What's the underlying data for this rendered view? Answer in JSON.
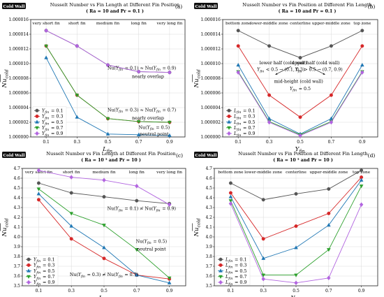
{
  "chart_data": [
    {
      "type": "line",
      "panel_label": "(a)",
      "badge": "Cold Wall",
      "title": "Nusselt Number vs Fin Length at Different Fin Position",
      "subtitle": "( Ra = 10  and  Pr = 0.1 )",
      "xlabel": "L_fin",
      "ylabel": "Nu_cold",
      "x": [
        0.1,
        0.3,
        0.5,
        0.7,
        0.9
      ],
      "xticks": [
        "0.1",
        "0.3",
        "0.5",
        "0.7",
        "0.9"
      ],
      "top_labels": [
        "very short fin",
        "short fin",
        "medium fin",
        "long fin",
        "very long fin"
      ],
      "ylim": [
        1.0,
        1.000016
      ],
      "yticks": [
        1.0,
        1.000002,
        1.000004,
        1.000006,
        1.000008,
        1.00001,
        1.000012,
        1.000014,
        1.000016
      ],
      "ytick_labels": [
        "1.000000",
        "1.000002",
        "1.000004",
        "1.000006",
        "1.000008",
        "1.000010",
        "1.000012",
        "1.000014",
        "1.000016"
      ],
      "legend_position": "lower-left",
      "series": [
        {
          "name": "Y_fin = 0.1",
          "color": "#555555",
          "marker": "circle",
          "values": [
            1.0000145,
            1.0000124,
            1.0000098,
            1.0000089,
            1.0000088
          ]
        },
        {
          "name": "Y_fin = 0.3",
          "color": "#d62728",
          "marker": "circle",
          "values": [
            1.0000124,
            1.0000057,
            1.0000025,
            1.0000021,
            1.000002
          ]
        },
        {
          "name": "Y_fin = 0.5",
          "color": "#1f77b4",
          "marker": "triangle-up",
          "values": [
            1.0000108,
            1.0000027,
            1.0000004,
            1.0000003,
            1.0000002
          ]
        },
        {
          "name": "Y_fin = 0.7",
          "color": "#2ca02c",
          "marker": "triangle-down",
          "values": [
            1.0000124,
            1.0000057,
            1.0000025,
            1.0000021,
            1.000002
          ]
        },
        {
          "name": "Y_fin = 0.9",
          "color": "#b265e0",
          "marker": "diamond",
          "values": [
            1.0000145,
            1.0000124,
            1.0000098,
            1.0000089,
            1.0000088
          ]
        }
      ],
      "annotations": [
        {
          "text": "Nu(Y_fin = 0.1) ≈ Nu(Y_fin = 0.9)",
          "x": 0.72,
          "y": 1.0000092
        },
        {
          "text": "nearly overlap",
          "x": 0.76,
          "y": 1.00000805
        },
        {
          "text": "Nu(Y_fin = 0.3) ≈ Nu(Y_fin = 0.7)",
          "x": 0.72,
          "y": 1.0000035
        },
        {
          "text": "nearly overlap",
          "x": 0.76,
          "y": 1.0000024
        },
        {
          "text": "Nu(Y_fin = 0.5)",
          "x": 0.8,
          "y": 1.0000011
        },
        {
          "text": "neutral point",
          "x": 0.8,
          "y": 1.0000002
        }
      ]
    },
    {
      "type": "line",
      "panel_label": "(b)",
      "badge": "Cold Wall",
      "title": "Nusselt Number vs Fin Position at Different Fin Length",
      "subtitle": "( Ra = 10  and  Pr = 0.1 )",
      "xlabel": "Y_fin",
      "ylabel": "Nu_cold",
      "x": [
        0.1,
        0.3,
        0.5,
        0.7,
        0.9
      ],
      "xticks": [
        "0.1",
        "0.3",
        "0.5",
        "0.7",
        "0.9"
      ],
      "top_labels": [
        "bottom zone",
        "lower-middle zone",
        "centerline",
        "upper-middle zone",
        "top zone"
      ],
      "ylim": [
        1.0,
        1.000016
      ],
      "yticks": [
        1.0,
        1.000002,
        1.000004,
        1.000006,
        1.000008,
        1.00001,
        1.000012,
        1.000014,
        1.000016
      ],
      "ytick_labels": [
        "1.000000",
        "1.000002",
        "1.000004",
        "1.000006",
        "1.000008",
        "1.000010",
        "1.000012",
        "1.000014",
        "1.000016"
      ],
      "legend_position": "lower-left",
      "series": [
        {
          "name": "L_fin = 0.1",
          "color": "#555555",
          "marker": "circle",
          "values": [
            1.0000145,
            1.0000124,
            1.0000108,
            1.0000124,
            1.0000145
          ]
        },
        {
          "name": "L_fin = 0.3",
          "color": "#d62728",
          "marker": "circle",
          "values": [
            1.0000124,
            1.0000057,
            1.0000027,
            1.0000057,
            1.0000124
          ]
        },
        {
          "name": "L_fin = 0.5",
          "color": "#1f77b4",
          "marker": "triangle-up",
          "values": [
            1.0000098,
            1.0000025,
            1.0000004,
            1.0000025,
            1.0000098
          ]
        },
        {
          "name": "L_fin = 0.7",
          "color": "#2ca02c",
          "marker": "triangle-down",
          "values": [
            1.0000089,
            1.0000021,
            1.0000003,
            1.0000021,
            1.0000089
          ]
        },
        {
          "name": "L_fin = 0.9",
          "color": "#b265e0",
          "marker": "diamond",
          "values": [
            1.0000088,
            1.000002,
            1.0000002,
            1.000002,
            1.0000088
          ]
        }
      ],
      "annotations": [
        {
          "text": "lower half (cold wall)",
          "x": 0.39,
          "y": 1.0000099
        },
        {
          "text": "Y_fin < 0.5 → (0.1, 0.3)",
          "x": 0.375,
          "y": 1.000009
        },
        {
          "text": "upper half (cold wall)",
          "x": 0.6,
          "y": 1.0000099
        },
        {
          "text": "Y_fin > 0.5 → (0.7, 0.9)",
          "x": 0.62,
          "y": 1.000009
        },
        {
          "text": "mid-height (cold wall)",
          "x": 0.49,
          "y": 1.0000074
        },
        {
          "text": "Y_fin = 0.5",
          "x": 0.5,
          "y": 1.0000064
        }
      ]
    },
    {
      "type": "line",
      "panel_label": "(c)",
      "badge": "Cold Wall",
      "title": "Nusselt Number vs Fin Length at Different Fin Position",
      "subtitle": "( Ra = 10^5  and  Pr = 10 )",
      "xlabel": "L_fin",
      "ylabel": "Nu_cold",
      "x": [
        0.1,
        0.3,
        0.5,
        0.7,
        0.9
      ],
      "xticks": [
        "0.1",
        "0.3",
        "0.5",
        "0.7",
        "0.9"
      ],
      "top_labels": [
        "very short fin",
        "short fin",
        "medium fin",
        "long fin",
        "very long fin"
      ],
      "ylim": [
        3.5,
        4.7
      ],
      "yticks": [
        3.5,
        3.6,
        3.7,
        3.8,
        3.9,
        4.0,
        4.1,
        4.2,
        4.3,
        4.4,
        4.5,
        4.6,
        4.7
      ],
      "ytick_labels": [
        "3.5",
        "3.6",
        "3.7",
        "3.8",
        "3.9",
        "4.0",
        "4.1",
        "4.2",
        "4.3",
        "4.4",
        "4.5",
        "4.6",
        "4.7"
      ],
      "legend_position": "lower-left",
      "series": [
        {
          "name": "Y_fin = 0.1",
          "color": "#555555",
          "marker": "circle",
          "values": [
            4.55,
            4.45,
            4.41,
            4.37,
            4.34
          ]
        },
        {
          "name": "Y_fin = 0.3",
          "color": "#d62728",
          "marker": "circle",
          "values": [
            4.38,
            3.98,
            3.78,
            3.61,
            3.57
          ]
        },
        {
          "name": "Y_fin = 0.5",
          "color": "#1f77b4",
          "marker": "triangle-up",
          "values": [
            4.44,
            4.11,
            3.89,
            3.61,
            3.53
          ]
        },
        {
          "name": "Y_fin = 0.7",
          "color": "#2ca02c",
          "marker": "triangle-down",
          "values": [
            4.49,
            4.24,
            4.12,
            3.87,
            3.58
          ]
        },
        {
          "name": "Y_fin = 0.9",
          "color": "#b265e0",
          "marker": "diamond",
          "values": [
            4.68,
            4.61,
            4.58,
            4.52,
            4.33
          ]
        }
      ],
      "annotations": [
        {
          "text": "Nu(Y_fin = 0.1) ≉ Nu(Y_fin = 0.9)",
          "x": 0.73,
          "y": 4.275
        },
        {
          "text": "Nu(Y_fin = 0.5)",
          "x": 0.79,
          "y": 3.94
        },
        {
          "text": "neutral point",
          "x": 0.79,
          "y": 3.86
        },
        {
          "text": "Nu(Y_fin = 0.3) ≉ Nu(Y_fin = 0.7)",
          "x": 0.5,
          "y": 3.6
        }
      ]
    },
    {
      "type": "line",
      "panel_label": "(d)",
      "badge": "Cold Wall",
      "title": "Nusselt Number vs Fin Position at Different Fin Length",
      "subtitle": "( Ra = 10^5  and  Pr = 10 )",
      "xlabel": "Y_fin",
      "ylabel": "Nu_cold",
      "x": [
        0.1,
        0.3,
        0.5,
        0.7,
        0.9
      ],
      "xticks": [
        "0.1",
        "0.3",
        "0.5",
        "0.7",
        "0.9"
      ],
      "top_labels": [
        "bottom zone",
        "lower-middle zone",
        "centerline",
        "upper-middle zone",
        "top zone"
      ],
      "ylim": [
        3.5,
        4.7
      ],
      "yticks": [
        3.5,
        3.6,
        3.7,
        3.8,
        3.9,
        4.0,
        4.1,
        4.2,
        4.3,
        4.4,
        4.5,
        4.6,
        4.7
      ],
      "ytick_labels": [
        "3.5",
        "3.6",
        "3.7",
        "3.8",
        "3.9",
        "4.0",
        "4.1",
        "4.2",
        "4.3",
        "4.4",
        "4.5",
        "4.6",
        "4.7"
      ],
      "legend_position": "lower-left",
      "series": [
        {
          "name": "L_fin = 0.1",
          "color": "#555555",
          "marker": "circle",
          "values": [
            4.55,
            4.38,
            4.44,
            4.49,
            4.68
          ]
        },
        {
          "name": "L_fin = 0.3",
          "color": "#d62728",
          "marker": "circle",
          "values": [
            4.45,
            3.98,
            4.11,
            4.24,
            4.61
          ]
        },
        {
          "name": "L_fin = 0.5",
          "color": "#1f77b4",
          "marker": "triangle-up",
          "values": [
            4.41,
            3.78,
            3.89,
            4.12,
            4.58
          ]
        },
        {
          "name": "L_fin = 0.7",
          "color": "#2ca02c",
          "marker": "triangle-down",
          "values": [
            4.37,
            3.61,
            3.61,
            3.87,
            4.52
          ]
        },
        {
          "name": "L_fin = 0.9",
          "color": "#b265e0",
          "marker": "diamond",
          "values": [
            4.34,
            3.57,
            3.53,
            3.58,
            4.33
          ]
        }
      ],
      "annotations": []
    }
  ]
}
